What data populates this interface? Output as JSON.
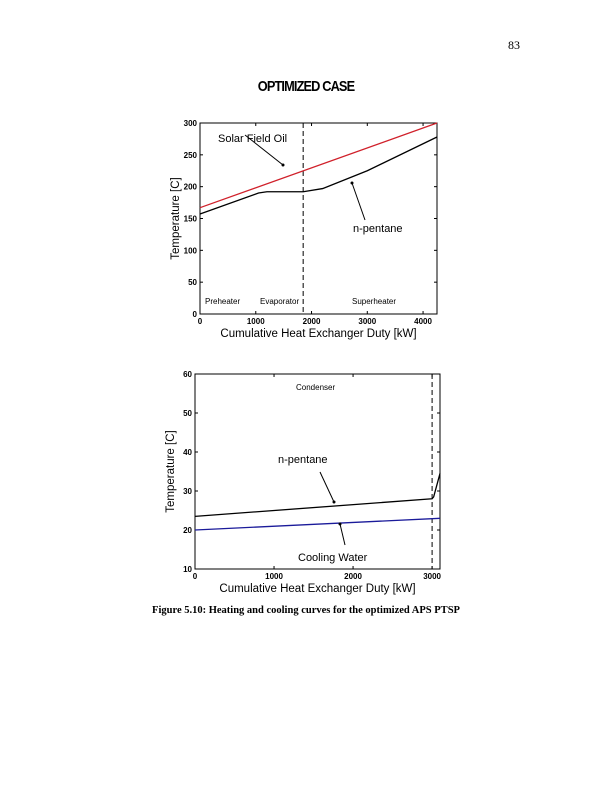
{
  "page_number": "83",
  "heading": "OPTIMIZED CASE",
  "caption": "Figure 5.10: Heating and cooling curves for the optimized APS PTSP",
  "chart_data": [
    {
      "type": "line",
      "xlabel": "Cumulative Heat Exchanger Duty [kW]",
      "ylabel": "Temperature [C]",
      "xlim": [
        0,
        4250
      ],
      "ylim": [
        0,
        300
      ],
      "xticks": [
        0,
        1000,
        2000,
        3000,
        4000
      ],
      "yticks": [
        0,
        50,
        100,
        150,
        200,
        250,
        300
      ],
      "series": [
        {
          "name": "Solar Field Oil",
          "color": "#d0202a",
          "x": [
            0,
            4250
          ],
          "y": [
            167,
            300
          ]
        },
        {
          "name": "n-pentane",
          "color": "#000000",
          "x": [
            0,
            1050,
            1200,
            1850,
            2200,
            3000,
            4250
          ],
          "y": [
            157,
            190,
            192,
            192,
            197,
            225,
            278
          ]
        }
      ],
      "vlines": [
        {
          "x": 1850,
          "style": "dashed"
        }
      ],
      "annotations": [
        "Solar Field Oil",
        "n-pentane"
      ],
      "regions": [
        "Preheater",
        "Evaporator",
        "Superheater"
      ]
    },
    {
      "type": "line",
      "xlabel": "Cumulative Heat Exchanger Duty [kW]",
      "ylabel": "Temperature [C]",
      "xlim": [
        0,
        3100
      ],
      "ylim": [
        10,
        60
      ],
      "xticks": [
        0,
        1000,
        2000,
        3000
      ],
      "yticks": [
        10,
        20,
        30,
        40,
        50,
        60
      ],
      "series": [
        {
          "name": "n-pentane",
          "color": "#000000",
          "x": [
            0,
            3000,
            3020,
            3100
          ],
          "y": [
            23.5,
            28,
            28.5,
            34.5
          ]
        },
        {
          "name": "Cooling Water",
          "color": "#1a1a9a",
          "x": [
            0,
            3100
          ],
          "y": [
            20,
            23
          ]
        }
      ],
      "vlines": [
        {
          "x": 3000,
          "style": "dashed"
        }
      ],
      "annotations": [
        "n-pentane",
        "Cooling Water"
      ],
      "regions": [
        "Condenser"
      ]
    }
  ]
}
